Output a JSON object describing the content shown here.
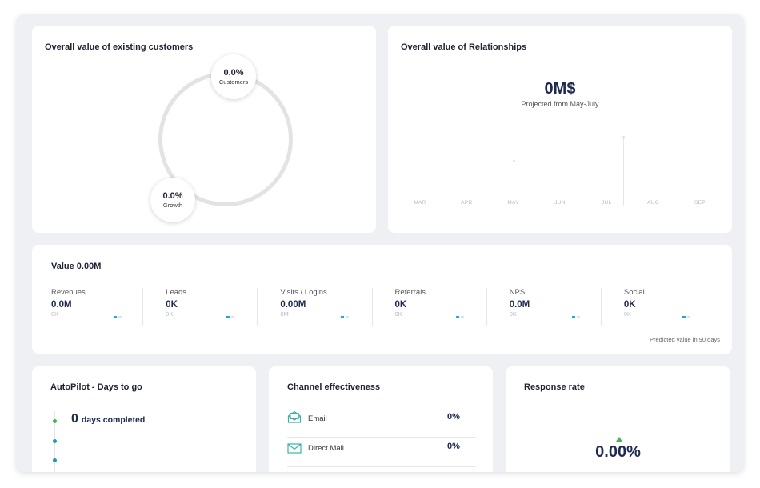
{
  "customers": {
    "title": "Overall value of existing customers",
    "customers_value": "0.0%",
    "customers_label": "Customers",
    "growth_value": "0.0%",
    "growth_label": "Growth"
  },
  "relationships": {
    "title": "Overall value of Relationships",
    "value": "0M$",
    "subtitle": "Projected from May-July",
    "months": [
      "MAR",
      "APR",
      "MAY",
      "JUN",
      "JUL",
      "AUG",
      "SEP"
    ]
  },
  "value_panel": {
    "title": "Value 0.00M",
    "metrics": [
      {
        "name": "Revenues",
        "value": "0.0M",
        "sub": "0K"
      },
      {
        "name": "Leads",
        "value": "0K",
        "sub": "0K"
      },
      {
        "name": "Visits / Logins",
        "value": "0.00M",
        "sub": "0M"
      },
      {
        "name": "Referrals",
        "value": "0K",
        "sub": "0K"
      },
      {
        "name": "NPS",
        "value": "0.0M",
        "sub": "0K"
      },
      {
        "name": "Social",
        "value": "0K",
        "sub": "0K"
      }
    ],
    "predicted_note": "Predicted value in 90 days"
  },
  "autopilot": {
    "title": "AutoPilot - Days to go",
    "days": "0",
    "days_label": "days completed"
  },
  "channel": {
    "title": "Channel effectiveness",
    "rows": [
      {
        "name": "Email",
        "value": "0%",
        "icon": "email-open-icon"
      },
      {
        "name": "Direct Mail",
        "value": "0%",
        "icon": "mail-envelope-icon"
      }
    ]
  },
  "response": {
    "title": "Response rate",
    "value": "0.00%",
    "trend": "up"
  },
  "colors": {
    "accent_blue": "#1ea8e0",
    "accent_green": "#4caf50",
    "navy": "#1f2a52",
    "teal_icon": "#3bb3a4"
  }
}
